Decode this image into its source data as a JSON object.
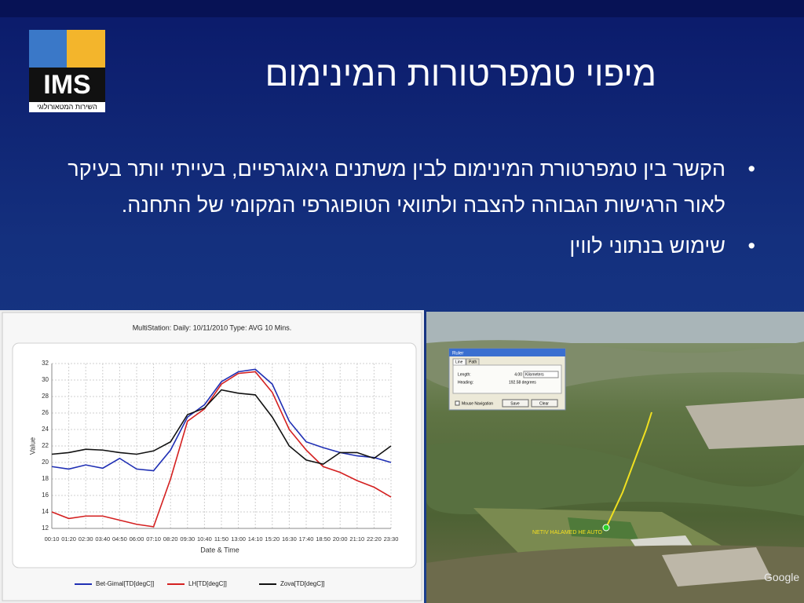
{
  "slide": {
    "title": "מיפוי טמפרטורות המינימום",
    "logo_text": "IMS",
    "logo_caption": "השירות המטאורולוגי",
    "bullets": [
      "הקשר בין טמפרטורת המינימום לבין משתנים גיאוגרפיים, בעייתי יותר בעיקר לאור הרגישות הגבוהה להצבה ולתוואי הטופוגרפי המקומי של התחנה.",
      "שימוש בנתוני לווין"
    ]
  },
  "chart_data": {
    "type": "line",
    "title": "MultiStation:  Daily: 10/11/2010  Type: AVG 10 Mins.",
    "x_label": "Date & Time",
    "y_label": "Value",
    "categories": [
      "00:10",
      "01:20",
      "02:30",
      "03:40",
      "04:50",
      "06:00",
      "07:10",
      "08:20",
      "09:30",
      "10:40",
      "11:50",
      "13:00",
      "14:10",
      "15:20",
      "16:30",
      "17:40",
      "18:50",
      "20:00",
      "21:10",
      "22:20",
      "23:30"
    ],
    "series": [
      {
        "name": "Bet-Gimal[TD[degC]]",
        "color": "#1f2fb4",
        "values": [
          19.5,
          19.2,
          19.7,
          19.3,
          20.5,
          19.2,
          19.0,
          21.5,
          25.5,
          27.0,
          29.8,
          31.0,
          31.3,
          29.5,
          25.0,
          22.5,
          21.8,
          21.2,
          20.8,
          20.6,
          20.0
        ]
      },
      {
        "name": "LH[TD[degC]]",
        "color": "#d42020",
        "values": [
          14.0,
          13.2,
          13.5,
          13.5,
          13.0,
          12.5,
          12.2,
          18.0,
          25.0,
          26.5,
          29.5,
          30.8,
          31.0,
          28.5,
          24.0,
          21.5,
          19.5,
          18.8,
          17.8,
          17.0,
          15.8
        ]
      },
      {
        "name": "Zova[TD[degC]]",
        "color": "#111111",
        "values": [
          21.0,
          21.2,
          21.6,
          21.5,
          21.2,
          21.0,
          21.4,
          22.5,
          25.8,
          26.6,
          28.8,
          28.4,
          28.2,
          25.5,
          22.0,
          20.3,
          19.8,
          21.2,
          21.2,
          20.5,
          22.0
        ]
      }
    ],
    "ylim": [
      12,
      32
    ],
    "yticks": [
      12,
      14,
      16,
      18,
      20,
      22,
      24,
      26,
      28,
      30,
      32
    ],
    "grid": true,
    "legend": "bottom"
  },
  "map": {
    "dialog_title": "Ruler",
    "tabs": [
      "Line",
      "Path"
    ],
    "length_label": "Length:",
    "length_value": "4.00",
    "length_unit": "Kilometers",
    "heading_label": "Heading:",
    "heading_value": "192.58 degrees",
    "checkbox_label": "Mouse Navigation",
    "buttons": [
      "Save",
      "Clear"
    ],
    "place_label": "NETIV HALAMED HE AUTO",
    "brand": "Google"
  }
}
